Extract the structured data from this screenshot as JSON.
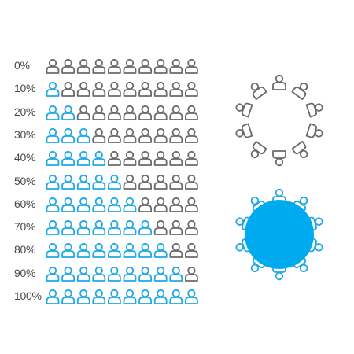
{
  "colors": {
    "filled": "#1ea8e8",
    "empty": "#6a6a6a",
    "table_fill": "#00aaee"
  },
  "icon_name": "person-icon",
  "icons_per_row": 10,
  "rows": [
    {
      "label": "0%",
      "value": 0
    },
    {
      "label": "10%",
      "value": 1
    },
    {
      "label": "20%",
      "value": 2
    },
    {
      "label": "30%",
      "value": 3
    },
    {
      "label": "40%",
      "value": 4
    },
    {
      "label": "50%",
      "value": 5
    },
    {
      "label": "60%",
      "value": 6
    },
    {
      "label": "70%",
      "value": 7
    },
    {
      "label": "80%",
      "value": 8
    },
    {
      "label": "90%",
      "value": 9
    },
    {
      "label": "100%",
      "value": 10
    }
  ],
  "round_tables": [
    {
      "name": "empty-round-table",
      "seats": 10,
      "style": "outline",
      "color": "#6a6a6a"
    },
    {
      "name": "full-round-table",
      "seats": 10,
      "style": "filled",
      "color": "#1ea8e8"
    }
  ]
}
